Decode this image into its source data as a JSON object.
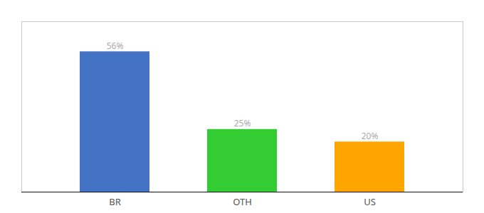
{
  "chart_data": {
    "type": "bar",
    "categories": [
      "BR",
      "OTH",
      "US"
    ],
    "values": [
      56,
      25,
      20
    ],
    "value_labels": [
      "56%",
      "25%",
      "20%"
    ],
    "data_labels": true,
    "colors": [
      "#4472C4",
      "#33CC33",
      "#FFA500"
    ],
    "ylim": [
      0,
      68
    ],
    "tick_labels": "x",
    "grid": false
  }
}
